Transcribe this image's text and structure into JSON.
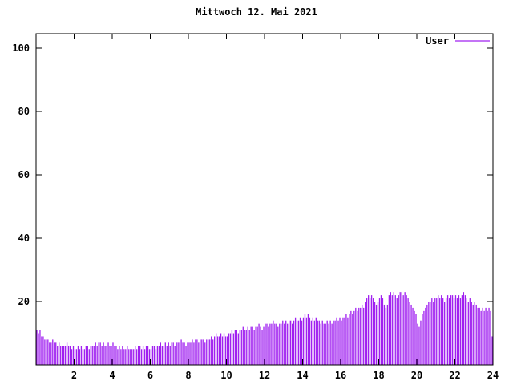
{
  "title": "Mittwoch 12. Mai 2021",
  "chart_data": {
    "type": "bar",
    "title": "Mittwoch 12. Mai 2021",
    "legend_entries": [
      "User"
    ],
    "legend_position": "top-right",
    "bar_color": "#a020f0",
    "axis_color": "#000000",
    "background_color": "#ffffff",
    "grid": false,
    "xlabel": "",
    "ylabel": "",
    "xlim": [
      0,
      24
    ],
    "ylim": [
      0,
      105
    ],
    "x_ticks": [
      2,
      4,
      6,
      8,
      10,
      12,
      14,
      16,
      18,
      20,
      22,
      24
    ],
    "y_ticks": [
      20,
      40,
      60,
      80,
      100
    ],
    "x_unit": "hour-of-day",
    "sample_interval_minutes": 5,
    "series": [
      {
        "name": "User",
        "values": [
          11,
          10,
          11,
          9,
          9,
          8,
          8,
          8,
          7,
          7,
          8,
          7,
          7,
          6,
          7,
          6,
          6,
          6,
          6,
          7,
          6,
          6,
          5,
          6,
          5,
          5,
          6,
          5,
          6,
          5,
          5,
          6,
          6,
          5,
          6,
          6,
          6,
          7,
          6,
          7,
          7,
          6,
          7,
          6,
          6,
          7,
          6,
          6,
          7,
          6,
          6,
          5,
          6,
          5,
          6,
          5,
          5,
          6,
          5,
          5,
          5,
          5,
          6,
          5,
          6,
          6,
          5,
          6,
          5,
          6,
          6,
          5,
          5,
          6,
          6,
          5,
          6,
          6,
          7,
          6,
          6,
          7,
          6,
          7,
          6,
          7,
          7,
          6,
          7,
          7,
          7,
          8,
          7,
          7,
          6,
          7,
          7,
          7,
          8,
          7,
          8,
          8,
          7,
          8,
          8,
          8,
          7,
          8,
          8,
          8,
          9,
          8,
          9,
          10,
          9,
          9,
          10,
          9,
          10,
          9,
          9,
          10,
          10,
          11,
          10,
          11,
          11,
          10,
          11,
          11,
          12,
          11,
          11,
          12,
          11,
          12,
          12,
          11,
          12,
          12,
          13,
          12,
          11,
          12,
          13,
          13,
          12,
          13,
          13,
          14,
          13,
          13,
          12,
          13,
          13,
          14,
          13,
          14,
          13,
          14,
          14,
          13,
          14,
          15,
          14,
          14,
          15,
          14,
          15,
          16,
          15,
          16,
          15,
          14,
          15,
          14,
          15,
          14,
          14,
          13,
          14,
          13,
          13,
          14,
          13,
          14,
          13,
          14,
          14,
          15,
          14,
          15,
          14,
          15,
          15,
          16,
          15,
          16,
          17,
          16,
          17,
          18,
          17,
          18,
          18,
          19,
          18,
          20,
          21,
          22,
          21,
          22,
          21,
          20,
          19,
          20,
          21,
          22,
          21,
          19,
          18,
          19,
          22,
          23,
          22,
          23,
          22,
          21,
          22,
          23,
          23,
          22,
          23,
          22,
          21,
          20,
          19,
          18,
          17,
          16,
          13,
          12,
          14,
          16,
          17,
          18,
          19,
          20,
          20,
          21,
          20,
          21,
          21,
          22,
          21,
          22,
          21,
          20,
          21,
          22,
          21,
          22,
          22,
          21,
          22,
          21,
          22,
          21,
          22,
          23,
          22,
          21,
          20,
          21,
          20,
          19,
          20,
          19,
          18,
          18,
          17,
          18,
          17,
          18,
          17,
          18,
          17,
          9
        ]
      }
    ]
  }
}
